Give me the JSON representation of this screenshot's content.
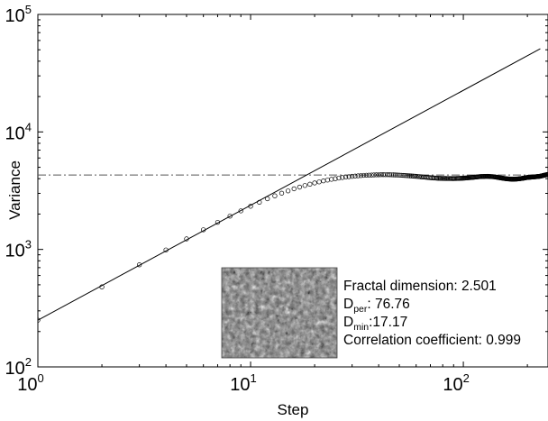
{
  "chart_data": {
    "type": "scatter",
    "title": "",
    "xlabel": "Step",
    "ylabel": "Variance",
    "xscale": "log",
    "yscale": "log",
    "xlim": [
      1,
      250
    ],
    "ylim": [
      100,
      100000
    ],
    "x_ticks": [
      {
        "base": "10",
        "exp": "0"
      },
      {
        "base": "10",
        "exp": "1"
      },
      {
        "base": "10",
        "exp": "2"
      }
    ],
    "y_ticks": [
      {
        "base": "10",
        "exp": "2"
      },
      {
        "base": "10",
        "exp": "3"
      },
      {
        "base": "10",
        "exp": "4"
      },
      {
        "base": "10",
        "exp": "5"
      }
    ],
    "grid": false,
    "series": [
      {
        "style": "open-circle markers",
        "x": [
          1,
          2,
          3,
          4,
          5,
          6,
          7,
          8,
          9,
          10,
          11,
          12,
          13,
          14,
          15,
          16,
          17,
          18,
          19,
          20,
          22,
          24,
          26,
          28,
          30,
          34,
          38,
          42,
          46,
          50,
          55,
          60,
          65,
          70,
          75,
          80,
          90,
          100,
          110,
          120,
          130,
          140,
          150,
          160,
          170,
          180,
          190,
          200,
          210,
          220,
          230,
          240,
          250
        ],
        "y": [
          250,
          480,
          740,
          990,
          1230,
          1470,
          1700,
          1920,
          2130,
          2330,
          2520,
          2700,
          2860,
          3010,
          3150,
          3280,
          3390,
          3500,
          3590,
          3680,
          3830,
          3950,
          4050,
          4130,
          4190,
          4270,
          4310,
          4330,
          4320,
          4290,
          4240,
          4190,
          4130,
          4080,
          4040,
          4020,
          4010,
          4040,
          4100,
          4170,
          4190,
          4150,
          4060,
          3990,
          3960,
          3980,
          4030,
          4100,
          4130,
          4160,
          4200,
          4280,
          4350
        ]
      }
    ],
    "reference_lines": [
      {
        "style": "solid",
        "kind": "power-law fit",
        "x": [
          1,
          230
        ],
        "y": [
          250,
          51000
        ]
      },
      {
        "style": "dash-dot",
        "kind": "horizontal",
        "y": 4300,
        "x": [
          1,
          250
        ]
      }
    ],
    "inset": {
      "description_icon": "surface-texture-image"
    },
    "annotations": [
      {
        "main": "Fractal dimension: 2.501",
        "sub": ""
      },
      {
        "main": "D",
        "sub": "per",
        "tail": ": 76.76"
      },
      {
        "main": "D",
        "sub": "min",
        "tail": ":17.17"
      },
      {
        "main": "Correlation coefficient: 0.999",
        "sub": ""
      }
    ]
  }
}
